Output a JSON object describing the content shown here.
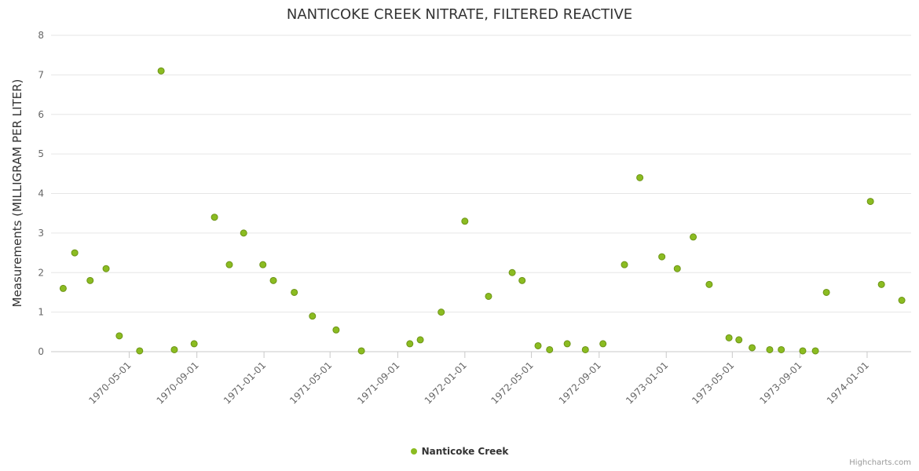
{
  "credits": "Highcharts.com",
  "chart_data": {
    "type": "scatter",
    "title": "NANTICOKE CREEK NITRATE, FILTERED REACTIVE",
    "xlabel": "",
    "ylabel": "Measurements (MILLIGRAM PER LITER)",
    "ylim": [
      0,
      8
    ],
    "y_ticks": [
      0,
      1,
      2,
      3,
      4,
      5,
      6,
      7,
      8
    ],
    "x_ticks": [
      "1970-05-01",
      "1970-09-01",
      "1971-01-01",
      "1971-05-01",
      "1971-09-01",
      "1972-01-01",
      "1972-05-01",
      "1972-09-01",
      "1973-01-01",
      "1973-05-01",
      "1973-09-01",
      "1974-01-01"
    ],
    "x_range": [
      "1969-12-10",
      "1974-03-22"
    ],
    "grid": true,
    "legend_position": "bottom",
    "grid_color": "#e6e6e6",
    "axis_line_color": "#c9c9c9",
    "tick_label_color": "#666666",
    "series": [
      {
        "name": "Nanticoke Creek",
        "color": "#8bbc21",
        "marker_stroke": "#6d9417",
        "points": [
          [
            "1970-01-01",
            1.6
          ],
          [
            "1970-01-22",
            2.5
          ],
          [
            "1970-02-19",
            1.8
          ],
          [
            "1970-03-20",
            2.1
          ],
          [
            "1970-04-13",
            0.4
          ],
          [
            "1970-05-20",
            0.02
          ],
          [
            "1970-06-28",
            7.1
          ],
          [
            "1970-07-22",
            0.05
          ],
          [
            "1970-08-27",
            0.2
          ],
          [
            "1970-10-03",
            3.4
          ],
          [
            "1970-10-30",
            2.2
          ],
          [
            "1970-11-25",
            3.0
          ],
          [
            "1970-12-30",
            2.2
          ],
          [
            "1971-01-18",
            1.8
          ],
          [
            "1971-02-25",
            1.5
          ],
          [
            "1971-03-30",
            0.9
          ],
          [
            "1971-05-12",
            0.55
          ],
          [
            "1971-06-27",
            0.02
          ],
          [
            "1971-09-23",
            0.2
          ],
          [
            "1971-10-12",
            0.3
          ],
          [
            "1971-11-19",
            1.0
          ],
          [
            "1972-01-01",
            3.3
          ],
          [
            "1972-02-13",
            1.4
          ],
          [
            "1972-03-27",
            2.0
          ],
          [
            "1972-04-14",
            1.8
          ],
          [
            "1972-05-13",
            0.15
          ],
          [
            "1972-06-03",
            0.05
          ],
          [
            "1972-07-05",
            0.2
          ],
          [
            "1972-08-07",
            0.05
          ],
          [
            "1972-09-08",
            0.2
          ],
          [
            "1972-10-17",
            2.2
          ],
          [
            "1972-11-14",
            4.4
          ],
          [
            "1972-12-24",
            2.4
          ],
          [
            "1973-01-21",
            2.1
          ],
          [
            "1973-02-19",
            2.9
          ],
          [
            "1973-03-20",
            1.7
          ],
          [
            "1973-04-25",
            0.35
          ],
          [
            "1973-05-13",
            0.3
          ],
          [
            "1973-06-06",
            0.1
          ],
          [
            "1973-07-08",
            0.05
          ],
          [
            "1973-07-29",
            0.05
          ],
          [
            "1973-09-06",
            0.02
          ],
          [
            "1973-09-29",
            0.02
          ],
          [
            "1973-10-19",
            1.5
          ],
          [
            "1974-01-07",
            3.8
          ],
          [
            "1974-01-27",
            1.7
          ],
          [
            "1974-03-05",
            1.3
          ]
        ]
      }
    ]
  }
}
